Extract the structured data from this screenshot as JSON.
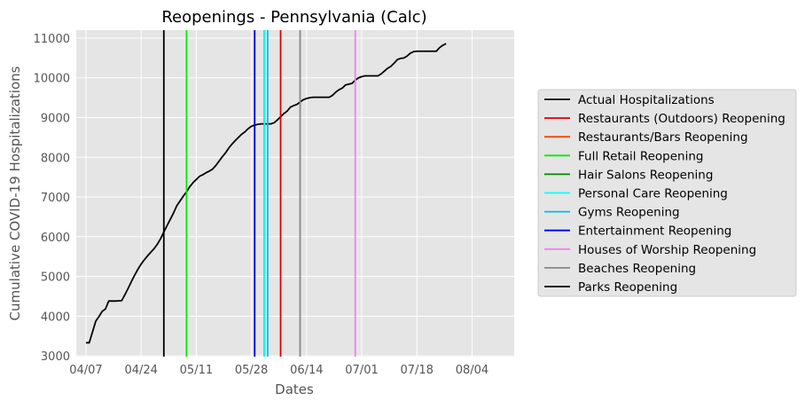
{
  "chart_data": {
    "type": "line",
    "title": "Reopenings - Pennsylvania (Calc)",
    "xlabel": "Dates",
    "ylabel": "Cumulative COVID-19 Hospitalizations",
    "x_tick_labels": [
      "04/07",
      "04/24",
      "05/11",
      "05/28",
      "06/14",
      "07/01",
      "07/18",
      "08/04"
    ],
    "x_ticks": [
      "2020-04-07",
      "2020-04-24",
      "2020-05-11",
      "2020-05-28",
      "2020-06-14",
      "2020-07-01",
      "2020-07-18",
      "2020-08-04"
    ],
    "xlim": [
      "2020-04-04",
      "2020-08-17"
    ],
    "y_ticks": [
      3000,
      4000,
      5000,
      6000,
      7000,
      8000,
      9000,
      10000,
      11000
    ],
    "ylim": [
      2980,
      11200
    ],
    "grid": true,
    "legend_position": "outside-right",
    "series": [
      {
        "name": "Actual Hospitalizations",
        "color": "#000000",
        "points": [
          [
            "2020-04-07",
            3330
          ],
          [
            "2020-04-08",
            3330
          ],
          [
            "2020-04-09",
            3600
          ],
          [
            "2020-04-10",
            3870
          ],
          [
            "2020-04-11",
            3990
          ],
          [
            "2020-04-12",
            4120
          ],
          [
            "2020-04-13",
            4180
          ],
          [
            "2020-04-14",
            4380
          ],
          [
            "2020-04-15",
            4380
          ],
          [
            "2020-04-16",
            4380
          ],
          [
            "2020-04-17",
            4385
          ],
          [
            "2020-04-18",
            4390
          ],
          [
            "2020-04-19",
            4540
          ],
          [
            "2020-04-20",
            4700
          ],
          [
            "2020-04-21",
            4870
          ],
          [
            "2020-04-22",
            5030
          ],
          [
            "2020-04-23",
            5180
          ],
          [
            "2020-04-24",
            5310
          ],
          [
            "2020-04-25",
            5420
          ],
          [
            "2020-04-26",
            5520
          ],
          [
            "2020-04-27",
            5610
          ],
          [
            "2020-04-28",
            5700
          ],
          [
            "2020-04-29",
            5810
          ],
          [
            "2020-04-30",
            5950
          ],
          [
            "2020-05-01",
            6120
          ],
          [
            "2020-05-02",
            6280
          ],
          [
            "2020-05-03",
            6440
          ],
          [
            "2020-05-04",
            6600
          ],
          [
            "2020-05-05",
            6780
          ],
          [
            "2020-05-06",
            6900
          ],
          [
            "2020-05-07",
            7020
          ],
          [
            "2020-05-08",
            7130
          ],
          [
            "2020-05-09",
            7260
          ],
          [
            "2020-05-10",
            7360
          ],
          [
            "2020-05-11",
            7440
          ],
          [
            "2020-05-12",
            7520
          ],
          [
            "2020-05-13",
            7560
          ],
          [
            "2020-05-14",
            7610
          ],
          [
            "2020-05-15",
            7650
          ],
          [
            "2020-05-16",
            7700
          ],
          [
            "2020-05-17",
            7790
          ],
          [
            "2020-05-18",
            7900
          ],
          [
            "2020-05-19",
            8010
          ],
          [
            "2020-05-20",
            8110
          ],
          [
            "2020-05-21",
            8230
          ],
          [
            "2020-05-22",
            8330
          ],
          [
            "2020-05-23",
            8420
          ],
          [
            "2020-05-24",
            8500
          ],
          [
            "2020-05-25",
            8580
          ],
          [
            "2020-05-26",
            8640
          ],
          [
            "2020-05-27",
            8720
          ],
          [
            "2020-05-28",
            8780
          ],
          [
            "2020-05-29",
            8810
          ],
          [
            "2020-05-30",
            8830
          ],
          [
            "2020-05-31",
            8840
          ],
          [
            "2020-06-01",
            8840
          ],
          [
            "2020-06-02",
            8840
          ],
          [
            "2020-06-03",
            8840
          ],
          [
            "2020-06-04",
            8870
          ],
          [
            "2020-06-05",
            8940
          ],
          [
            "2020-06-06",
            9020
          ],
          [
            "2020-06-07",
            9100
          ],
          [
            "2020-06-08",
            9160
          ],
          [
            "2020-06-09",
            9260
          ],
          [
            "2020-06-10",
            9300
          ],
          [
            "2020-06-11",
            9330
          ],
          [
            "2020-06-12",
            9390
          ],
          [
            "2020-06-13",
            9450
          ],
          [
            "2020-06-14",
            9480
          ],
          [
            "2020-06-15",
            9500
          ],
          [
            "2020-06-16",
            9510
          ],
          [
            "2020-06-17",
            9510
          ],
          [
            "2020-06-18",
            9510
          ],
          [
            "2020-06-19",
            9510
          ],
          [
            "2020-06-20",
            9510
          ],
          [
            "2020-06-21",
            9510
          ],
          [
            "2020-06-22",
            9560
          ],
          [
            "2020-06-23",
            9640
          ],
          [
            "2020-06-24",
            9700
          ],
          [
            "2020-06-25",
            9740
          ],
          [
            "2020-06-26",
            9820
          ],
          [
            "2020-06-27",
            9840
          ],
          [
            "2020-06-28",
            9860
          ],
          [
            "2020-06-29",
            9940
          ],
          [
            "2020-06-30",
            10000
          ],
          [
            "2020-07-01",
            10030
          ],
          [
            "2020-07-02",
            10050
          ],
          [
            "2020-07-03",
            10050
          ],
          [
            "2020-07-04",
            10050
          ],
          [
            "2020-07-05",
            10050
          ],
          [
            "2020-07-06",
            10050
          ],
          [
            "2020-07-07",
            10100
          ],
          [
            "2020-07-08",
            10170
          ],
          [
            "2020-07-09",
            10240
          ],
          [
            "2020-07-10",
            10290
          ],
          [
            "2020-07-11",
            10370
          ],
          [
            "2020-07-12",
            10460
          ],
          [
            "2020-07-13",
            10490
          ],
          [
            "2020-07-14",
            10500
          ],
          [
            "2020-07-15",
            10550
          ],
          [
            "2020-07-16",
            10620
          ],
          [
            "2020-07-17",
            10660
          ],
          [
            "2020-07-18",
            10670
          ],
          [
            "2020-07-19",
            10670
          ],
          [
            "2020-07-20",
            10670
          ],
          [
            "2020-07-21",
            10670
          ],
          [
            "2020-07-22",
            10670
          ],
          [
            "2020-07-23",
            10670
          ],
          [
            "2020-07-24",
            10670
          ],
          [
            "2020-07-25",
            10760
          ],
          [
            "2020-07-26",
            10820
          ],
          [
            "2020-07-27",
            10860
          ]
        ]
      }
    ],
    "vertical_lines": [
      {
        "name": "Restaurants (Outdoors) Reopening",
        "date": "2020-06-06",
        "color": "#dd0000"
      },
      {
        "name": "Restaurants/Bars Reopening",
        "date": "2020-06-01",
        "color": "#ff4400"
      },
      {
        "name": "Full Retail Reopening",
        "date": "2020-05-08",
        "color": "#00ee00"
      },
      {
        "name": "Hair Salons Reopening",
        "date": "2020-06-01",
        "color": "#008800"
      },
      {
        "name": "Personal Care Reopening",
        "date": "2020-06-01",
        "color": "#00ffff"
      },
      {
        "name": "Gyms Reopening",
        "date": "2020-06-02",
        "color": "#00bbee"
      },
      {
        "name": "Entertainment Reopening",
        "date": "2020-05-29",
        "color": "#0000ee"
      },
      {
        "name": "Houses of Worship Reopening",
        "date": "2020-06-29",
        "color": "#ee82ee"
      },
      {
        "name": "Beaches Reopening",
        "date": "2020-06-12",
        "color": "#888888"
      },
      {
        "name": "Parks Reopening",
        "date": "2020-05-01",
        "color": "#000000"
      }
    ]
  }
}
